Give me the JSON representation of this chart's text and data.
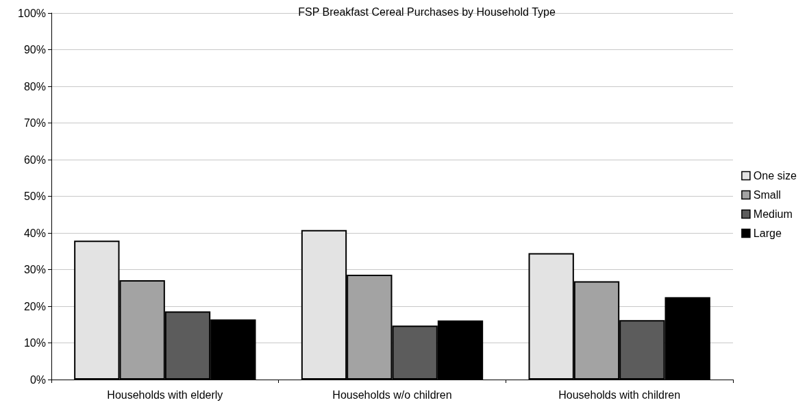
{
  "chart_data": {
    "type": "bar",
    "title": "FSP Breakfast Cereal Purchases by Household Type",
    "categories": [
      "Households with elderly",
      "Households w/o children",
      "Households with children"
    ],
    "series": [
      {
        "name": "One size",
        "color": "#e3e3e3",
        "values": [
          37.9,
          40.8,
          34.5
        ]
      },
      {
        "name": "Small",
        "color": "#a3a3a3",
        "values": [
          27.1,
          28.6,
          26.8
        ]
      },
      {
        "name": "Medium",
        "color": "#5c5c5c",
        "values": [
          18.6,
          14.7,
          16.2
        ]
      },
      {
        "name": "Large",
        "color": "#000000",
        "values": [
          16.4,
          16.1,
          22.5
        ]
      }
    ],
    "ylim": [
      0,
      100
    ],
    "yticks": [
      {
        "value": 0,
        "label": "0%"
      },
      {
        "value": 10,
        "label": "10%"
      },
      {
        "value": 20,
        "label": "20%"
      },
      {
        "value": 30,
        "label": "30%"
      },
      {
        "value": 40,
        "label": "40%"
      },
      {
        "value": 50,
        "label": "50%"
      },
      {
        "value": 60,
        "label": "60%"
      },
      {
        "value": 70,
        "label": "70%"
      },
      {
        "value": 80,
        "label": "80%"
      },
      {
        "value": 90,
        "label": "90%"
      },
      {
        "value": 100,
        "label": "100%"
      }
    ],
    "grid": "y",
    "legend": "right"
  }
}
